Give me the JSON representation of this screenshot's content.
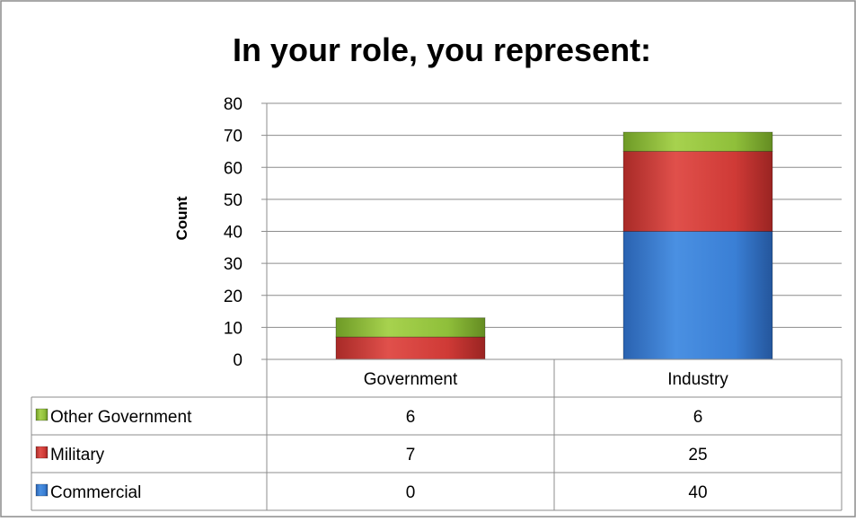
{
  "chart_data": {
    "type": "bar",
    "stacked": true,
    "title": "In your role, you represent:",
    "xlabel": "",
    "ylabel": "Count",
    "ylim": [
      0,
      80
    ],
    "yticks": [
      "0",
      "10",
      "20",
      "30",
      "40",
      "50",
      "60",
      "70",
      "80"
    ],
    "categories": [
      "Government",
      "Industry"
    ],
    "grid": true,
    "legend": "data-table",
    "series": [
      {
        "name": "Commercial",
        "values": [
          0,
          40
        ],
        "color": "#3a7fd5"
      },
      {
        "name": "Military",
        "values": [
          7,
          25
        ],
        "color": "#cf3a36"
      },
      {
        "name": "Other Government",
        "values": [
          6,
          6
        ],
        "color": "#8fbf3a"
      }
    ]
  }
}
